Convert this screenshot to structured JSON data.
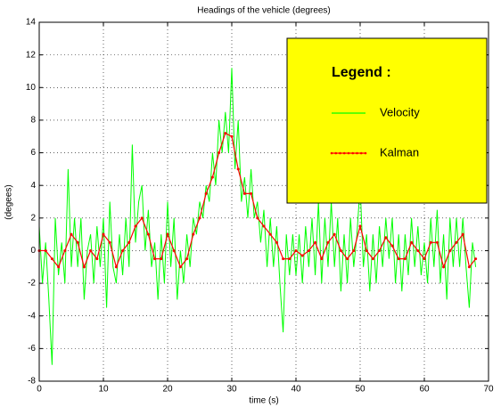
{
  "chart_data": {
    "type": "line",
    "title": "Headings of the vehicle (degrees)",
    "x_label": "time (s)",
    "y_label": "(degees)",
    "xlim": [
      0,
      70
    ],
    "xticks": [
      0,
      10,
      20,
      30,
      40,
      50,
      60,
      70
    ],
    "ylim": [
      -8,
      14
    ],
    "yticks": [
      -8,
      -6,
      -4,
      -2,
      0,
      2,
      4,
      6,
      8,
      10,
      12,
      14
    ],
    "grid": true,
    "legend_title": "Legend :",
    "legend_position": "upper right",
    "legend_color": "#ffff00",
    "series": [
      {
        "name": "Velocity",
        "color": "#00ff00",
        "x": [
          0,
          0.5,
          1,
          1.5,
          2,
          2.5,
          3,
          3.5,
          4,
          4.5,
          5,
          5.5,
          6,
          6.5,
          7,
          7.5,
          8,
          8.5,
          9,
          9.5,
          10,
          10.5,
          11,
          11.5,
          12,
          12.5,
          13,
          13.5,
          14,
          14.5,
          15,
          15.5,
          16,
          16.5,
          17,
          17.5,
          18,
          18.5,
          19,
          19.5,
          20,
          20.5,
          21,
          21.5,
          22,
          22.5,
          23,
          23.5,
          24,
          24.5,
          25,
          25.5,
          26,
          26.5,
          27,
          27.5,
          28,
          28.5,
          29,
          29.5,
          30,
          30.5,
          31,
          31.5,
          32,
          32.5,
          33,
          33.5,
          34,
          34.5,
          35,
          35.5,
          36,
          36.5,
          37,
          37.5,
          38,
          38.5,
          39,
          39.5,
          40,
          40.5,
          41,
          41.5,
          42,
          42.5,
          43,
          43.5,
          44,
          44.5,
          45,
          45.5,
          46,
          46.5,
          47,
          47.5,
          48,
          48.5,
          49,
          49.5,
          50,
          50.5,
          51,
          51.5,
          52,
          52.5,
          53,
          53.5,
          54,
          54.5,
          55,
          55.5,
          56,
          56.5,
          57,
          57.5,
          58,
          58.5,
          59,
          59.5,
          60,
          60.5,
          61,
          61.5,
          62,
          62.5,
          63,
          63.5,
          64,
          64.5,
          65,
          65.5,
          66,
          66.5,
          67,
          67.5,
          68
        ],
        "values": [
          1.5,
          -2,
          0.5,
          -3,
          -7,
          2,
          -1.5,
          0.5,
          -2,
          5,
          -1,
          2,
          -1,
          2,
          -3,
          0,
          1,
          -2,
          1.5,
          -1,
          2,
          -3.5,
          3,
          -1,
          -2,
          1,
          -1.5,
          2,
          -1,
          6.5,
          0.5,
          3,
          4,
          0,
          2.5,
          -1,
          0.5,
          -3,
          1,
          -2,
          3,
          -1,
          2,
          -3,
          0,
          -2,
          1,
          -1,
          2,
          1,
          3,
          2,
          4,
          3,
          6,
          4,
          8,
          6,
          8.5,
          6,
          11.2,
          5,
          8,
          3,
          4.5,
          2,
          5,
          2,
          3,
          0.5,
          2.5,
          -1,
          2,
          -1,
          1.5,
          -2,
          -5,
          1,
          -1.5,
          1,
          -1.5,
          1,
          -2,
          1.5,
          -1,
          2,
          -1.5,
          3,
          -2,
          2,
          -1,
          3,
          -1,
          2,
          -2.5,
          1,
          -2,
          2,
          -1,
          1,
          4,
          -1,
          1,
          -2.5,
          1,
          -2,
          1.5,
          -1,
          2,
          -0.5,
          2,
          -2,
          1,
          -2.5,
          1,
          -1.5,
          2,
          -1,
          1.5,
          -1.5,
          0.5,
          -2,
          2,
          -1,
          2.5,
          -2,
          1,
          -3,
          2,
          -1,
          2,
          -1,
          2,
          -1,
          -3.5,
          0.5,
          -1
        ]
      },
      {
        "name": "Kalman",
        "color": "#ff0000",
        "x": [
          0,
          1,
          2,
          3,
          4,
          5,
          6,
          7,
          8,
          9,
          10,
          11,
          12,
          13,
          14,
          15,
          16,
          17,
          18,
          19,
          20,
          21,
          22,
          23,
          24,
          25,
          26,
          27,
          28,
          29,
          30,
          31,
          32,
          33,
          34,
          35,
          36,
          37,
          38,
          39,
          40,
          41,
          42,
          43,
          44,
          45,
          46,
          47,
          48,
          49,
          50,
          51,
          52,
          53,
          54,
          55,
          56,
          57,
          58,
          59,
          60,
          61,
          62,
          63,
          64,
          65,
          66,
          67,
          68
        ],
        "values": [
          0,
          0,
          -0.5,
          -1,
          0,
          1,
          0.5,
          -1,
          0,
          -0.5,
          1,
          0.5,
          -1,
          0,
          0.5,
          1.5,
          2,
          1,
          -0.5,
          -0.5,
          1,
          0,
          -1,
          -0.5,
          1,
          2,
          3.5,
          4.5,
          6,
          7.2,
          7,
          5,
          3.5,
          3.5,
          2,
          1.5,
          1,
          0.5,
          -0.5,
          -0.5,
          0,
          -0.3,
          0,
          0.5,
          -0.5,
          0.5,
          1,
          0,
          -0.5,
          0,
          1.5,
          0,
          -0.5,
          0,
          0.8,
          0.3,
          -0.5,
          -0.5,
          0.5,
          0,
          -0.5,
          0.5,
          0.5,
          -1,
          0,
          0.5,
          1,
          -1,
          -0.5
        ]
      }
    ]
  }
}
